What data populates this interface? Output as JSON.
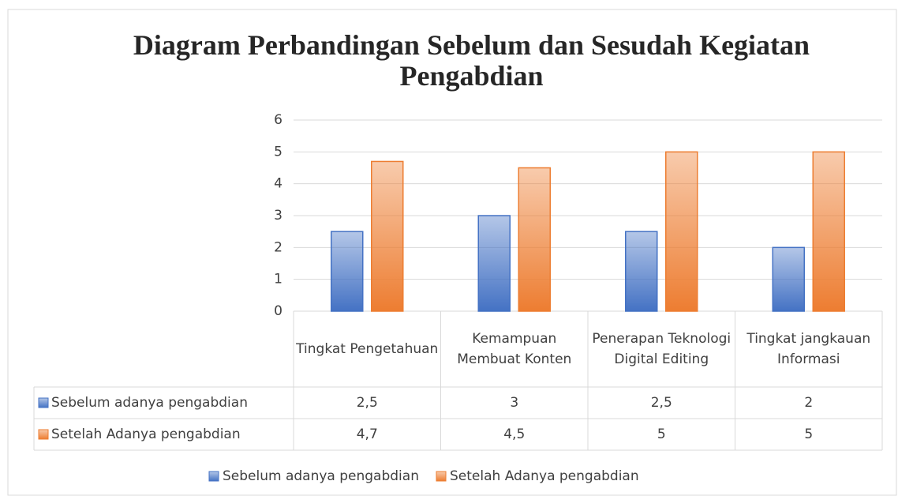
{
  "chart_data": {
    "type": "bar",
    "title": "Diagram Perbandingan Sebelum dan Sesudah Kegiatan Pengabdian",
    "categories": [
      "Tingkat Pengetahuan",
      "Kemampuan Membuat Konten",
      "Penerapan Teknologi Digital Editing",
      "Tingkat jangkauan Informasi"
    ],
    "series": [
      {
        "name": "Sebelum adanya pengabdian",
        "color": "#4472c4",
        "values": [
          2.5,
          3,
          2.5,
          2
        ],
        "value_labels": [
          "2,5",
          "3",
          "2,5",
          "2"
        ]
      },
      {
        "name": "Setelah Adanya pengabdian",
        "color": "#ed7d31",
        "values": [
          4.7,
          4.5,
          5,
          5
        ],
        "value_labels": [
          "4,7",
          "4,5",
          "5",
          "5"
        ]
      }
    ],
    "ylim": [
      0,
      6
    ],
    "yticks": [
      0,
      1,
      2,
      3,
      4,
      5,
      6
    ],
    "grid": true,
    "legend": "bottom"
  }
}
